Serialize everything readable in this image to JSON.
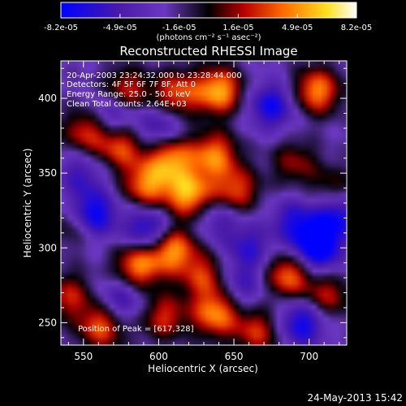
{
  "chart_data": {
    "type": "heatmap",
    "title": "Reconstructed RHESSI Image",
    "xlabel": "Heliocentric X (arcsec)",
    "ylabel": "Heliocentric Y (arcsec)",
    "xlim": [
      535,
      725
    ],
    "ylim": [
      235,
      425
    ],
    "xticks": [
      550,
      600,
      650,
      700
    ],
    "yticks": [
      250,
      300,
      350,
      400
    ],
    "colorbar": {
      "colormap": "blue-purple-red-yellow-white",
      "range": [
        -8.2e-05,
        8.2e-05
      ],
      "tick_labels": [
        "-8.2e-05",
        "-4.9e-05",
        "-1.6e-05",
        "1.6e-05",
        "4.9e-05",
        "8.2e-05"
      ],
      "units": "(photons cm⁻² s⁻¹ asec⁻²)",
      "colors": [
        "#0000ff",
        "#4a1aa8",
        "#6a38c0",
        "#000000",
        "#b80000",
        "#ff6a00",
        "#ffe020",
        "#ffffff"
      ]
    },
    "annotations": {
      "time_range": "20-Apr-2003 23:24:32.000 to 23:28:44.000",
      "detectors": "Detectors: 4F 5F 6F 7F 8F, Att 0",
      "energy_range": "Energy Range: 25.0 - 50.0 keV",
      "algorithm_counts": "Clean     Total counts: 2.64E+03",
      "peak": "Position of Peak = [617,328]"
    },
    "peak_position": [
      617,
      328
    ],
    "bright_sources": [
      {
        "x": 640,
        "y": 405,
        "v": 0.95
      },
      {
        "x": 612,
        "y": 403,
        "v": 0.7
      },
      {
        "x": 578,
        "y": 404,
        "v": 0.7
      },
      {
        "x": 552,
        "y": 378,
        "v": 0.65
      },
      {
        "x": 575,
        "y": 368,
        "v": 0.7
      },
      {
        "x": 608,
        "y": 360,
        "v": 0.85
      },
      {
        "x": 592,
        "y": 342,
        "v": 0.8
      },
      {
        "x": 620,
        "y": 336,
        "v": 0.95
      },
      {
        "x": 637,
        "y": 362,
        "v": 0.8
      },
      {
        "x": 651,
        "y": 338,
        "v": 0.7
      },
      {
        "x": 609,
        "y": 299,
        "v": 0.9
      },
      {
        "x": 586,
        "y": 288,
        "v": 0.85
      },
      {
        "x": 630,
        "y": 281,
        "v": 0.6
      },
      {
        "x": 686,
        "y": 282,
        "v": 0.8
      },
      {
        "x": 712,
        "y": 268,
        "v": 0.55
      },
      {
        "x": 705,
        "y": 405,
        "v": 0.85
      },
      {
        "x": 562,
        "y": 248,
        "v": 0.75
      },
      {
        "x": 603,
        "y": 254,
        "v": 0.6
      },
      {
        "x": 638,
        "y": 256,
        "v": 0.85
      },
      {
        "x": 666,
        "y": 244,
        "v": 0.6
      },
      {
        "x": 545,
        "y": 316,
        "v": 0.5
      },
      {
        "x": 540,
        "y": 268,
        "v": 0.55
      },
      {
        "x": 690,
        "y": 357,
        "v": 0.45
      },
      {
        "x": 715,
        "y": 340,
        "v": 0.4
      }
    ],
    "dark_sources": [
      {
        "x": 555,
        "y": 322,
        "v": -0.9
      },
      {
        "x": 593,
        "y": 312,
        "v": -0.7
      },
      {
        "x": 705,
        "y": 300,
        "v": -0.95
      },
      {
        "x": 718,
        "y": 322,
        "v": -0.65
      },
      {
        "x": 690,
        "y": 318,
        "v": -0.5
      },
      {
        "x": 570,
        "y": 390,
        "v": -0.6
      },
      {
        "x": 675,
        "y": 395,
        "v": -0.65
      },
      {
        "x": 640,
        "y": 320,
        "v": -0.4
      },
      {
        "x": 660,
        "y": 300,
        "v": -0.45
      },
      {
        "x": 600,
        "y": 380,
        "v": -0.5
      },
      {
        "x": 575,
        "y": 265,
        "v": -0.5
      },
      {
        "x": 695,
        "y": 250,
        "v": -0.7
      },
      {
        "x": 655,
        "y": 275,
        "v": -0.4
      },
      {
        "x": 548,
        "y": 350,
        "v": -0.4
      }
    ]
  },
  "footer": {
    "date": "24-May-2013 15:42"
  }
}
